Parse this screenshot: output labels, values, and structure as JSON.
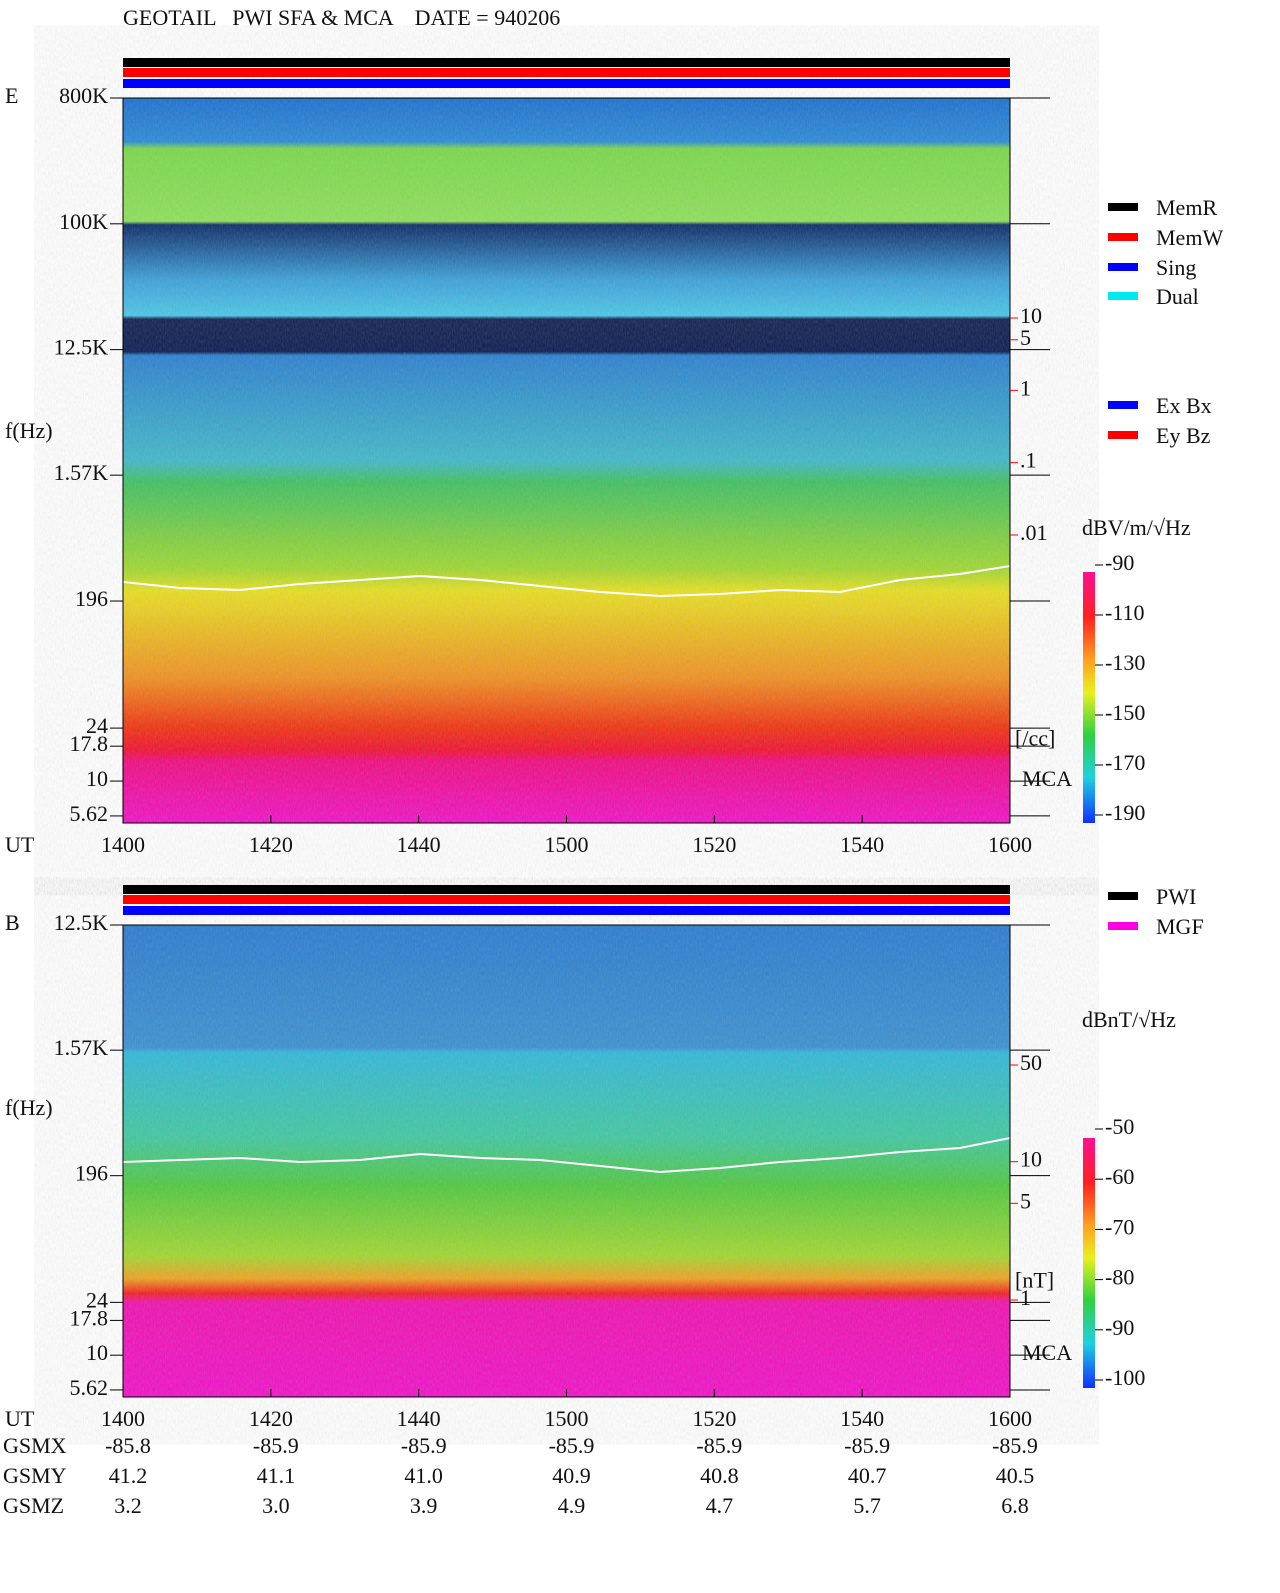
{
  "title": "GEOTAIL   PWI SFA & MCA    DATE = 940206",
  "chart_data": [
    {
      "type": "spectrogram",
      "panel": "E",
      "ylabel": "f(Hz)",
      "xlabel": "UT",
      "ylog": true,
      "categories": [
        "1400",
        "1420",
        "1440",
        "1500",
        "1520",
        "1540",
        "1600"
      ],
      "ylim": [
        5,
        800000
      ],
      "yticks": [
        {
          "value": 800000,
          "label": "800K"
        },
        {
          "value": 100000,
          "label": "100K"
        },
        {
          "value": 12500,
          "label": "12.5K"
        },
        {
          "value": 1570,
          "label": "1.57K"
        },
        196,
        24,
        17.8,
        10,
        5.62
      ],
      "y2label": "[/cc]",
      "y2lim": [
        0.01,
        10
      ],
      "y2ticks": [
        10,
        5,
        1,
        {
          "value": 0.1,
          "label": ".1"
        },
        {
          "value": 0.01,
          "label": ".01"
        }
      ],
      "y2color": "#ff0000",
      "mca": "MCA",
      "colorbar": {
        "label": "dBV/m/√Hz",
        "lim": [
          -190,
          -90
        ],
        "ticks": [
          -90,
          -110,
          -130,
          -150,
          -170,
          -190
        ]
      },
      "legend": [
        {
          "name": "MemR",
          "color": "#000000"
        },
        {
          "name": "MemW",
          "color": "#ff0000"
        },
        {
          "name": "Sing",
          "color": "#0000ff"
        },
        {
          "name": "Dual",
          "color": "#00e8f0"
        }
      ],
      "legend2": [
        {
          "name": "Ex Bx",
          "color": "#0000ff"
        },
        {
          "name": "Ey Bz",
          "color": "#ff0000"
        }
      ]
    },
    {
      "type": "spectrogram",
      "panel": "B",
      "ylabel": "f(Hz)",
      "xlabel": "UT",
      "ylog": true,
      "categories": [
        "1400",
        "1420",
        "1440",
        "1500",
        "1520",
        "1540",
        "1600"
      ],
      "ylim": [
        5,
        12500
      ],
      "yticks": [
        {
          "value": 12500,
          "label": "12.5K"
        },
        {
          "value": 1570,
          "label": "1.57K"
        },
        196,
        24,
        17.8,
        10,
        5.62
      ],
      "y2label": "[nT]",
      "y2lim": [
        1,
        50
      ],
      "y2ticks": [
        50,
        10,
        5,
        1
      ],
      "y2color": "#ff0000",
      "mca": "MCA",
      "colorbar": {
        "label": "dBnT/√Hz",
        "lim": [
          -100,
          -50
        ],
        "ticks": [
          -50,
          -60,
          -70,
          -80,
          -90,
          -100
        ]
      },
      "legend": [
        {
          "name": "PWI",
          "color": "#000000"
        },
        {
          "name": "MGF",
          "color": "#ff00e0"
        }
      ]
    }
  ],
  "ephemeris": {
    "rows": [
      {
        "name": "GSMX",
        "values": [
          "-85.8",
          "-85.9",
          "-85.9",
          "-85.9",
          "-85.9",
          "-85.9",
          "-85.9"
        ]
      },
      {
        "name": "GSMY",
        "values": [
          "41.2",
          "41.1",
          "41.0",
          "40.9",
          "40.8",
          "40.7",
          "40.5"
        ]
      },
      {
        "name": "GSMZ",
        "values": [
          "3.2",
          "3.0",
          "3.9",
          "4.9",
          "4.7",
          "5.7",
          "6.8"
        ]
      }
    ]
  }
}
